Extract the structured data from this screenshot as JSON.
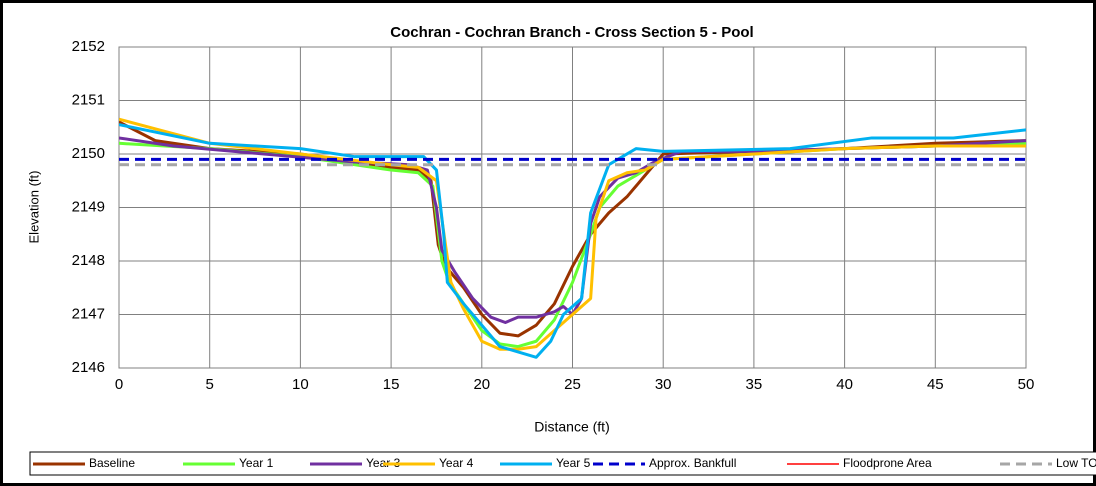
{
  "chart_data": {
    "type": "line",
    "title": "Cochran - Cochran Branch - Cross Section 5 - Pool",
    "x_label": "Distance (ft)",
    "y_label": "Elevation (ft)",
    "xlim": [
      0,
      50
    ],
    "ylim": [
      2146,
      2152
    ],
    "xticks": [
      0,
      5,
      10,
      15,
      20,
      25,
      30,
      35,
      40,
      45,
      50
    ],
    "yticks": [
      2146,
      2147,
      2148,
      2149,
      2150,
      2151,
      2152
    ],
    "grid": true,
    "series": [
      {
        "name": "Baseline",
        "color": "#993300",
        "width": 3,
        "x": [
          0,
          2,
          5,
          10,
          15,
          16.5,
          17.2,
          17.6,
          18,
          19,
          20,
          21,
          22,
          23,
          24,
          25,
          26,
          27,
          28,
          29,
          30,
          35,
          40,
          45,
          50
        ],
        "values": [
          2150.6,
          2150.25,
          2150.1,
          2150.0,
          2149.75,
          2149.7,
          2149.5,
          2148.3,
          2147.9,
          2147.5,
          2147.0,
          2146.65,
          2146.6,
          2146.8,
          2147.2,
          2147.9,
          2148.5,
          2148.9,
          2149.2,
          2149.6,
          2150.0,
          2150.05,
          2150.1,
          2150.2,
          2150.25
        ]
      },
      {
        "name": "Year 1",
        "color": "#66FF33",
        "width": 3,
        "x": [
          0,
          5,
          10,
          15,
          16.5,
          17.3,
          17.8,
          18.2,
          19,
          20,
          21,
          22,
          23,
          24,
          25,
          26,
          26.5,
          27.5,
          28.5,
          30,
          35,
          40,
          45,
          50
        ],
        "values": [
          2150.2,
          2150.1,
          2149.95,
          2149.7,
          2149.65,
          2149.4,
          2148.0,
          2147.6,
          2147.2,
          2146.7,
          2146.45,
          2146.4,
          2146.5,
          2146.9,
          2147.6,
          2148.5,
          2149.0,
          2149.4,
          2149.6,
          2149.9,
          2150.0,
          2150.1,
          2150.15,
          2150.2
        ]
      },
      {
        "name": "Year 3",
        "color": "#7030A0",
        "width": 3,
        "x": [
          0,
          3,
          8,
          13,
          16,
          17,
          17.5,
          17.8,
          18.5,
          19.5,
          20.5,
          21.3,
          22,
          23,
          24,
          24.5,
          25,
          25.5,
          26,
          26.5,
          27.5,
          28.5,
          29.5,
          31,
          35,
          40,
          45,
          50
        ],
        "values": [
          2150.3,
          2150.15,
          2150.0,
          2149.85,
          2149.8,
          2149.7,
          2149.0,
          2148.2,
          2147.8,
          2147.3,
          2146.95,
          2146.85,
          2146.95,
          2146.95,
          2147.05,
          2147.15,
          2147.0,
          2147.3,
          2148.7,
          2149.2,
          2149.55,
          2149.65,
          2149.85,
          2150.05,
          2150.05,
          2150.1,
          2150.15,
          2150.25
        ]
      },
      {
        "name": "Year 4",
        "color": "#FFC000",
        "width": 3,
        "x": [
          0,
          5,
          10,
          15,
          16.5,
          17.5,
          18,
          18.3,
          19,
          20,
          21,
          22,
          23,
          24,
          25,
          26,
          26.3,
          27,
          28,
          29,
          30,
          35,
          40,
          45,
          50
        ],
        "values": [
          2150.65,
          2150.2,
          2150.0,
          2149.8,
          2149.75,
          2149.5,
          2148.3,
          2147.6,
          2147.1,
          2146.5,
          2146.35,
          2146.35,
          2146.4,
          2146.7,
          2147.0,
          2147.3,
          2148.8,
          2149.5,
          2149.65,
          2149.7,
          2149.9,
          2150.0,
          2150.1,
          2150.15,
          2150.15
        ]
      },
      {
        "name": "Year 5",
        "color": "#00B0F0",
        "width": 3,
        "x": [
          0,
          5,
          10,
          13,
          15,
          16.8,
          17.5,
          17.9,
          18.1,
          19,
          20,
          21,
          22,
          23,
          23.8,
          24.5,
          25.5,
          26,
          27,
          28.5,
          30,
          37,
          41.5,
          46,
          50
        ],
        "values": [
          2150.55,
          2150.2,
          2150.1,
          2149.95,
          2149.95,
          2149.95,
          2149.7,
          2148.5,
          2147.6,
          2147.2,
          2146.8,
          2146.4,
          2146.3,
          2146.2,
          2146.5,
          2147.0,
          2147.3,
          2148.9,
          2149.8,
          2150.1,
          2150.05,
          2150.1,
          2150.3,
          2150.3,
          2150.45
        ]
      },
      {
        "name": "Approx. Bankfull",
        "color": "#0000CC",
        "width": 3,
        "dash": "dashed",
        "x": [
          0,
          50
        ],
        "values": [
          2149.9,
          2149.9
        ]
      },
      {
        "name": "Floodprone Area",
        "color": "#FF0000",
        "width": 1.5,
        "x": [
          0,
          50
        ],
        "values": [
          null,
          null
        ]
      },
      {
        "name": "Low TOB",
        "color": "#A6A6A6",
        "width": 3,
        "dash": "dashed",
        "x": [
          0,
          50
        ],
        "values": [
          2149.8,
          2149.8
        ]
      }
    ]
  }
}
